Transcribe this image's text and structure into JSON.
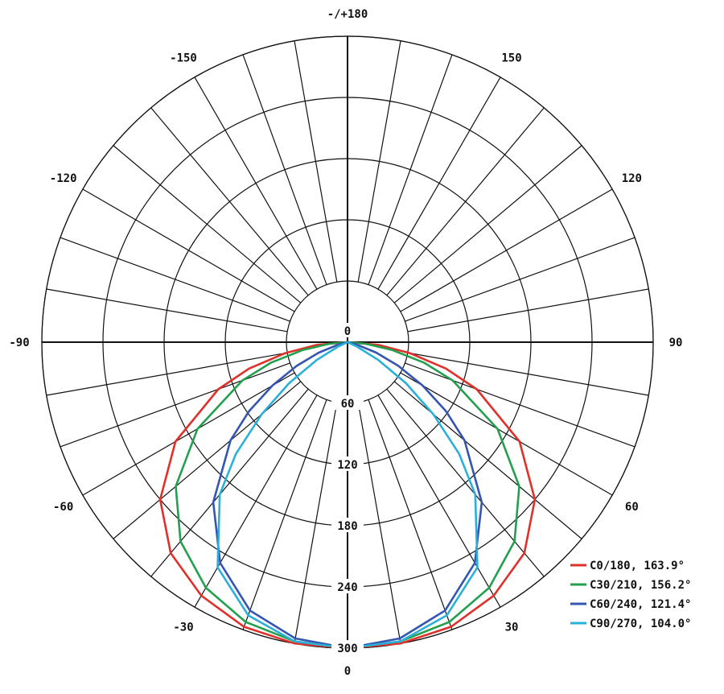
{
  "chart_data": {
    "type": "polar-line",
    "radial_labels": [
      "0",
      "60",
      "120",
      "180",
      "240",
      "300"
    ],
    "radial_range": [
      0,
      300
    ],
    "angular_labels": [
      "-/+180",
      "-150",
      "150",
      "-120",
      "120",
      "-90",
      "90",
      "-60",
      "60",
      "-30",
      "30",
      "0"
    ],
    "grid": true,
    "legend_position": "bottom-right",
    "series": [
      {
        "name": "C0/180, 163.9°",
        "color": "#e0302a",
        "gamma": [
          0,
          10,
          20,
          30,
          40,
          50,
          60,
          70,
          75,
          80,
          85
        ],
        "intensity": [
          300,
          300,
          297,
          287,
          270,
          240,
          195,
          135,
          100,
          62,
          30
        ]
      },
      {
        "name": "C30/210, 156.2°",
        "color": "#22a04e",
        "gamma": [
          0,
          10,
          20,
          30,
          40,
          50,
          60,
          70,
          75,
          80,
          85
        ],
        "intensity": [
          300,
          298,
          292,
          278,
          255,
          220,
          170,
          110,
          78,
          45,
          18
        ]
      },
      {
        "name": "C60/240, 121.4°",
        "color": "#3556b0",
        "gamma": [
          0,
          10,
          20,
          30,
          40,
          50,
          55,
          60,
          65,
          70,
          75
        ],
        "intensity": [
          300,
          295,
          280,
          250,
          205,
          150,
          118,
          85,
          55,
          30,
          10
        ]
      },
      {
        "name": "C90/270, 104.0°",
        "color": "#2ab0d8",
        "gamma": [
          0,
          10,
          20,
          30,
          40,
          45,
          50,
          55,
          60,
          65
        ],
        "intensity": [
          300,
          298,
          285,
          255,
          195,
          155,
          110,
          70,
          35,
          10
        ]
      }
    ]
  }
}
